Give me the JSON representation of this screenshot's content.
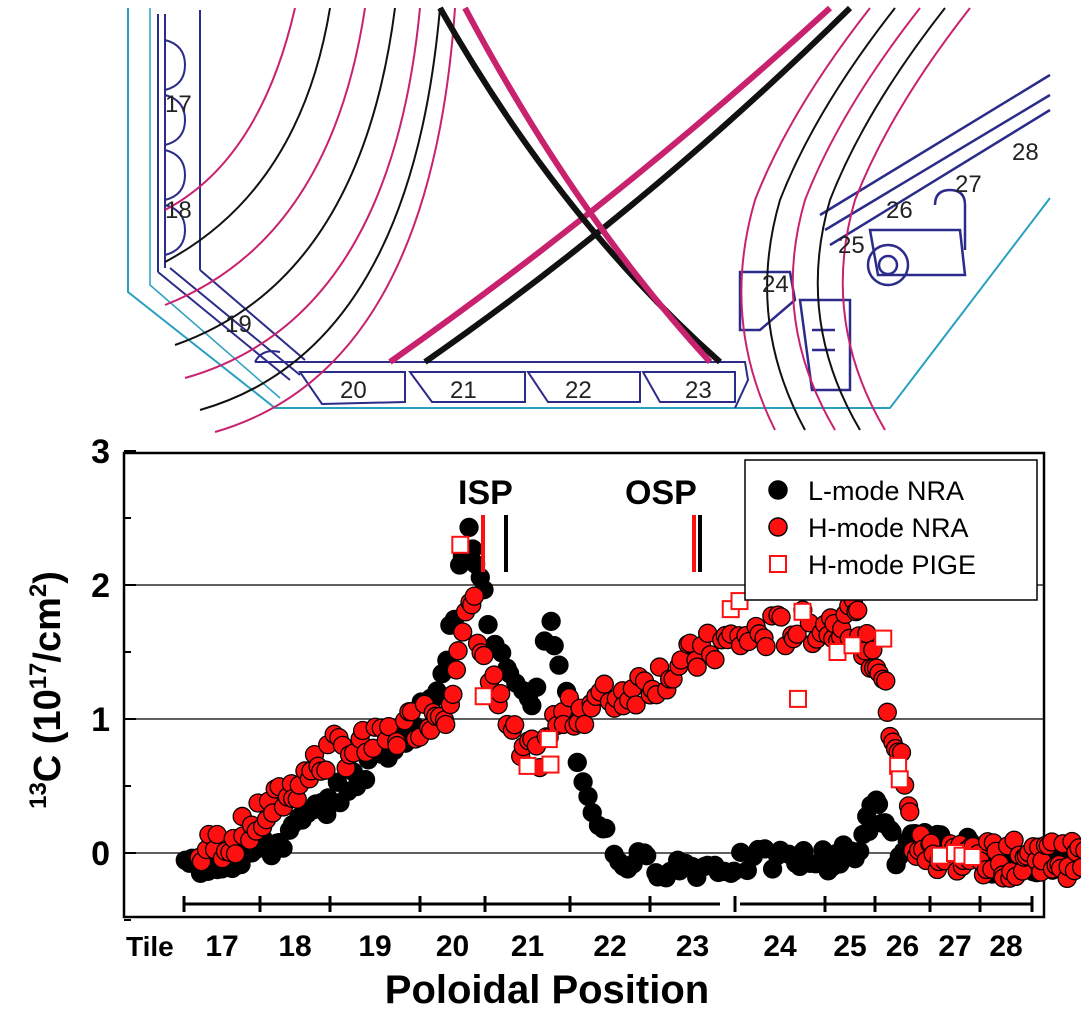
{
  "chart_data": {
    "type": "scatter",
    "title": "",
    "ylabel_sup": "13",
    "ylabel_main": "C (10",
    "ylabel_exp1": "17",
    "ylabel_mid": "/cm",
    "ylabel_exp2": "2",
    "ylabel_end": ")",
    "xlabel": "Poloidal Position",
    "tile_label": "Tile",
    "ylim": [
      -0.5,
      3.0
    ],
    "yticks": [
      "0",
      "1",
      "2",
      "3"
    ],
    "tiles": [
      "17",
      "18",
      "19",
      "20",
      "21",
      "22",
      "23",
      "24",
      "25",
      "26",
      "27",
      "28"
    ],
    "strike_points": [
      "ISP",
      "OSP"
    ],
    "legend_position": "top-right",
    "gridlines_at": [
      0,
      1,
      2
    ],
    "series": [
      {
        "name": "L-mode NRA",
        "marker": "filled-circle",
        "color": "#000000",
        "profile": [
          [
            0.0,
            -0.1
          ],
          [
            0.6,
            -0.05
          ],
          [
            1.2,
            0.05
          ],
          [
            1.8,
            0.3
          ],
          [
            2.3,
            0.55
          ],
          [
            2.9,
            0.95
          ],
          [
            3.3,
            1.3
          ],
          [
            3.55,
            1.8
          ],
          [
            3.72,
            2.6
          ],
          [
            3.9,
            2.1
          ],
          [
            4.1,
            1.6
          ],
          [
            4.35,
            1.2
          ],
          [
            4.55,
            1.05
          ],
          [
            4.75,
            1.8
          ],
          [
            4.95,
            1.2
          ],
          [
            5.15,
            0.55
          ],
          [
            5.35,
            0.25
          ],
          [
            5.6,
            -0.05
          ],
          [
            6.2,
            -0.1
          ],
          [
            6.8,
            -0.1
          ],
          [
            7.4,
            -0.05
          ],
          [
            8.0,
            -0.05
          ],
          [
            8.6,
            0.0
          ],
          [
            9.0,
            0.35
          ],
          [
            9.25,
            0.2
          ],
          [
            9.45,
            -0.1
          ],
          [
            9.7,
            0.1
          ],
          [
            10.1,
            0.05
          ],
          [
            10.6,
            0.1
          ],
          [
            11.0,
            -0.05
          ],
          [
            11.6,
            -0.1
          ],
          [
            12.2,
            -0.05
          ],
          [
            12.8,
            -0.05
          ]
        ]
      },
      {
        "name": "H-mode NRA",
        "marker": "red-circle",
        "color": "#ff1010",
        "profile": [
          [
            0.2,
            0.0
          ],
          [
            0.8,
            0.15
          ],
          [
            1.4,
            0.45
          ],
          [
            2.0,
            0.75
          ],
          [
            2.5,
            0.8
          ],
          [
            3.0,
            1.0
          ],
          [
            3.4,
            1.1
          ],
          [
            3.62,
            1.5
          ],
          [
            3.8,
            1.9
          ],
          [
            4.0,
            1.4
          ],
          [
            4.2,
            1.05
          ],
          [
            4.4,
            0.75
          ],
          [
            4.6,
            0.7
          ],
          [
            4.8,
            0.95
          ],
          [
            5.2,
            1.1
          ],
          [
            5.7,
            1.2
          ],
          [
            6.2,
            1.35
          ],
          [
            6.8,
            1.55
          ],
          [
            7.4,
            1.65
          ],
          [
            8.0,
            1.7
          ],
          [
            8.6,
            1.75
          ],
          [
            8.85,
            1.5
          ],
          [
            9.1,
            1.4
          ],
          [
            9.3,
            0.9
          ],
          [
            9.45,
            0.75
          ],
          [
            9.7,
            0.05
          ],
          [
            10.1,
            0.0
          ],
          [
            10.6,
            -0.02
          ],
          [
            11.1,
            -0.05
          ],
          [
            11.6,
            -0.05
          ],
          [
            12.1,
            0.0
          ],
          [
            12.6,
            -0.05
          ],
          [
            13.0,
            -0.05
          ]
        ]
      },
      {
        "name": "H-mode PIGE",
        "marker": "red-open-square",
        "color": "#ff1010",
        "points": [
          [
            3.62,
            2.3
          ],
          [
            3.98,
            1.17
          ],
          [
            4.5,
            0.65
          ],
          [
            4.75,
            0.85
          ],
          [
            4.77,
            0.66
          ],
          [
            6.95,
            1.82
          ],
          [
            7.05,
            1.88
          ],
          [
            7.55,
            2.1
          ],
          [
            7.7,
            1.15
          ],
          [
            7.75,
            1.8
          ],
          [
            8.25,
            1.5
          ],
          [
            8.45,
            2.15
          ],
          [
            8.55,
            1.55
          ],
          [
            9.0,
            2.05
          ],
          [
            9.15,
            1.6
          ],
          [
            9.42,
            0.65
          ],
          [
            9.45,
            0.55
          ],
          [
            10.2,
            -0.02
          ],
          [
            10.5,
            0.0
          ],
          [
            10.65,
            -0.02
          ],
          [
            10.85,
            -0.03
          ]
        ]
      }
    ]
  },
  "diagram": {
    "tile_labels": [
      "17",
      "18",
      "19",
      "20",
      "21",
      "22",
      "23",
      "24",
      "25",
      "26",
      "27",
      "28"
    ],
    "colors": {
      "outline": "#2b2b8a",
      "vessel": "#2aa0c0",
      "flux_magenta": "#c8226e",
      "flux_black": "#111111"
    }
  }
}
